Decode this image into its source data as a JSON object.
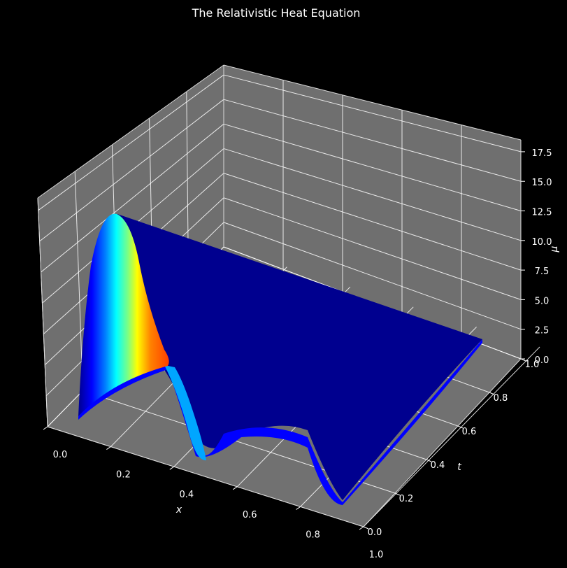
{
  "chart_data": {
    "type": "surface3d",
    "title": "The Relativistic Heat Equation",
    "xlabel": "x",
    "ylabel": "t",
    "zlabel": "μ",
    "xlim": [
      0,
      1
    ],
    "ylim": [
      0,
      1
    ],
    "zlim": [
      0,
      18.5
    ],
    "x_ticks": [
      "0.0",
      "0.2",
      "0.4",
      "0.6",
      "0.8",
      "1.0"
    ],
    "y_ticks": [
      "0.0",
      "0.2",
      "0.4",
      "0.6",
      "0.8",
      "1.0"
    ],
    "z_ticks": [
      "0.0",
      "2.5",
      "5.0",
      "7.5",
      "10.0",
      "12.5",
      "15.0",
      "17.5"
    ],
    "colormap": "jet",
    "grid": true,
    "pane_color": "#6f6f6f",
    "background": "#000000",
    "surface_points": [
      {
        "x": 0.0,
        "t": 0.0,
        "mu": 0.0
      },
      {
        "x": 0.1,
        "t": 0.0,
        "mu": 14.5
      },
      {
        "x": 0.2,
        "t": 0.0,
        "mu": 2.2
      },
      {
        "x": 0.3,
        "t": 0.0,
        "mu": 0.3
      },
      {
        "x": 0.5,
        "t": 0.0,
        "mu": 0.2
      },
      {
        "x": 0.7,
        "t": 0.0,
        "mu": 0.2
      },
      {
        "x": 1.0,
        "t": 0.0,
        "mu": 0.0
      },
      {
        "x": 0.5,
        "t": 0.5,
        "mu": 0.6
      },
      {
        "x": 0.5,
        "t": 1.0,
        "mu": 0.3
      },
      {
        "x": 0.0,
        "t": 1.0,
        "mu": 0.0
      },
      {
        "x": 1.0,
        "t": 1.0,
        "mu": 0.0
      }
    ]
  }
}
